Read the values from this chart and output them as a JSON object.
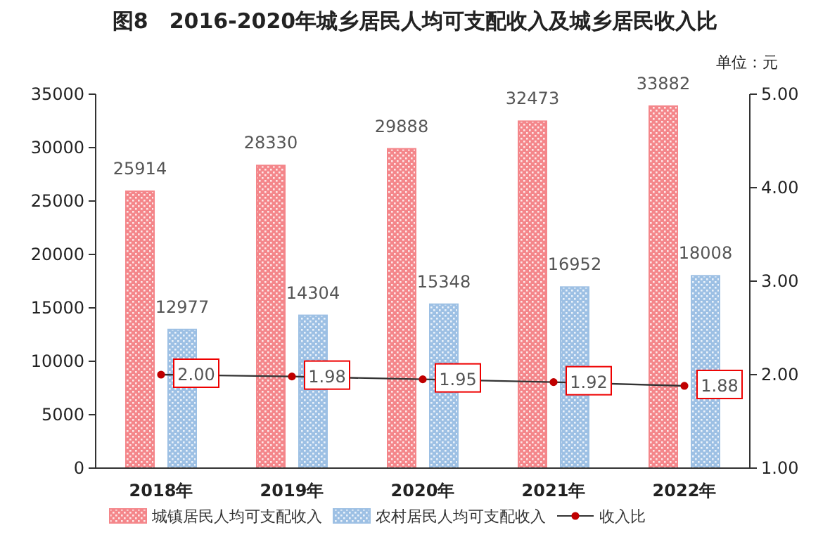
{
  "chart_data": {
    "type": "bar",
    "title": "图8　2016-2020年城乡居民人均可支配收入及城乡居民收入比",
    "annotations": [
      "单位：元"
    ],
    "categories": [
      "2018年",
      "2019年",
      "2020年",
      "2021年",
      "2022年"
    ],
    "series": [
      {
        "name": "城镇居民人均可支配收入",
        "color": "#f4868a",
        "values": [
          25914,
          28330,
          29888,
          32473,
          33882
        ]
      },
      {
        "name": "农村居民人均可支配收入",
        "color": "#9dc0e4",
        "values": [
          12977,
          14304,
          15348,
          16952,
          18008
        ]
      },
      {
        "name": "收入比",
        "type": "line",
        "axis": "y2",
        "color": "#c00000",
        "marker": "circle",
        "values": [
          2.0,
          1.98,
          1.95,
          1.92,
          1.88
        ],
        "value_labels": [
          "2.00",
          "1.98",
          "1.95",
          "1.92",
          "1.88"
        ]
      }
    ],
    "data_labels": true,
    "ylim": [
      0,
      35000
    ],
    "yticks": [
      0,
      5000,
      10000,
      15000,
      20000,
      25000,
      30000,
      35000
    ],
    "y2lim": [
      1,
      5
    ],
    "y2ticks": [
      {
        "value": 1,
        "label": "1.00"
      },
      {
        "value": 2,
        "label": "2.00"
      },
      {
        "value": 3,
        "label": "3.00"
      },
      {
        "value": 4,
        "label": "4.00"
      },
      {
        "value": 5,
        "label": "5.00"
      }
    ],
    "legend": "bottom",
    "grid": false
  }
}
